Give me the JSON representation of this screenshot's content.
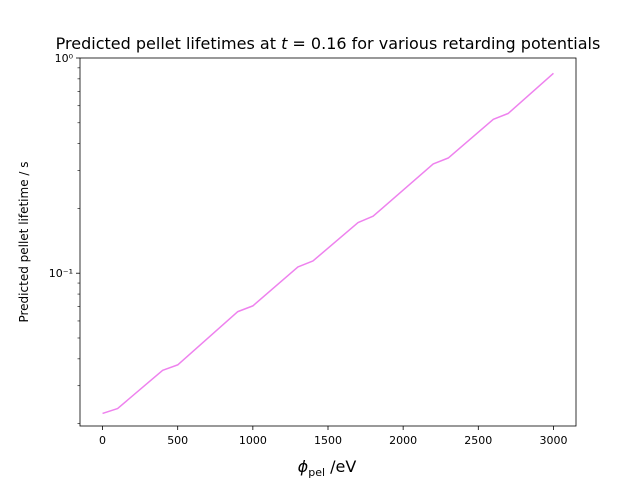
{
  "chart_data": {
    "type": "line",
    "title": "Predicted pellet lifetimes at t̃ = 0.16 for various retarding potentials",
    "title_parts": {
      "prefix": "Predicted pellet lifetimes at ",
      "var": "t",
      "var_accent": "˜",
      "equals_value": " = 0.16",
      "suffix": " for various retarding potentials"
    },
    "xlabel": "ϕpel /eV",
    "xlabel_parts": {
      "symbol": "ϕ",
      "subscript": "pel",
      "unit": " /eV"
    },
    "ylabel": "Predicted pellet lifetime / s",
    "x_scale": "linear",
    "y_scale": "log",
    "xlim": [
      -150,
      3150
    ],
    "ylim": [
      0.0195,
      1.0
    ],
    "x_ticks": [
      0,
      500,
      1000,
      1500,
      2000,
      2500,
      3000
    ],
    "x_tick_labels": [
      "0",
      "500",
      "1000",
      "1500",
      "2000",
      "2500",
      "3000"
    ],
    "y_major_ticks": [
      0.1,
      1.0
    ],
    "y_tick_labels": [
      "10⁻¹",
      "10⁰"
    ],
    "y_minor_ticks": [
      0.02,
      0.03,
      0.04,
      0.05,
      0.06,
      0.07,
      0.08,
      0.09,
      0.2,
      0.3,
      0.4,
      0.5,
      0.6,
      0.7,
      0.8,
      0.9
    ],
    "grid": false,
    "legend": "none",
    "series": [
      {
        "color": "#ee82ee",
        "x": [
          0,
          100,
          400,
          500,
          900,
          1000,
          1300,
          1400,
          1700,
          1800,
          2200,
          2300,
          2600,
          2700,
          3000
        ],
        "y": [
          0.0223,
          0.0235,
          0.0354,
          0.0375,
          0.0663,
          0.0705,
          0.107,
          0.114,
          0.172,
          0.184,
          0.322,
          0.343,
          0.519,
          0.553,
          0.849
        ]
      }
    ]
  }
}
